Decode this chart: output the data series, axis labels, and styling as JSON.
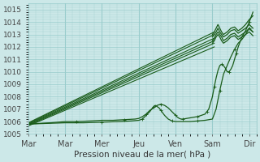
{
  "xlabel": "Pression niveau de la mer( hPa )",
  "ylim": [
    1005,
    1015.5
  ],
  "xlim": [
    0,
    6.2
  ],
  "bg_color": "#cce8e8",
  "grid_color": "#99cccc",
  "line_color": "#1a5c1a",
  "tick_labels": [
    "Mar",
    "Mar",
    "Mer",
    "Jeu",
    "Ven",
    "Sam",
    "Dir"
  ],
  "tick_positions": [
    0.0,
    1.0,
    2.0,
    3.0,
    4.0,
    5.0,
    6.0
  ],
  "yticks": [
    1005,
    1006,
    1007,
    1008,
    1009,
    1010,
    1011,
    1012,
    1013,
    1014,
    1015
  ],
  "straight_lines": [
    {
      "x0": 0.0,
      "y0": 1005.9,
      "x1": 5.05,
      "y1": 1013.2
    },
    {
      "x0": 0.0,
      "y0": 1005.85,
      "x1": 5.05,
      "y1": 1013.0
    },
    {
      "x0": 0.0,
      "y0": 1005.8,
      "x1": 5.05,
      "y1": 1012.7
    },
    {
      "x0": 0.0,
      "y0": 1005.75,
      "x1": 5.05,
      "y1": 1012.5
    },
    {
      "x0": 0.0,
      "y0": 1005.7,
      "x1": 5.05,
      "y1": 1012.3
    },
    {
      "x0": 0.0,
      "y0": 1005.65,
      "x1": 5.05,
      "y1": 1012.0
    }
  ],
  "wiggly_series": [
    {
      "x": [
        0.0,
        0.3,
        0.6,
        1.0,
        1.3,
        1.7,
        2.0,
        2.3,
        2.6,
        2.9,
        3.0,
        3.1,
        3.2,
        3.3,
        3.4,
        3.5,
        3.6,
        3.7,
        3.8,
        3.9,
        4.0,
        4.05,
        4.1,
        4.15,
        4.2,
        4.3,
        4.4,
        4.5,
        4.6,
        4.7,
        4.75,
        4.8,
        4.85,
        4.9,
        4.95,
        5.0,
        5.05,
        5.1,
        5.15,
        5.2,
        5.25,
        5.3,
        5.35,
        5.4,
        5.45,
        5.5,
        5.55,
        5.6,
        5.65,
        5.7,
        5.8,
        5.9,
        6.0,
        6.1
      ],
      "y": [
        1005.8,
        1005.85,
        1005.9,
        1006.0,
        1006.0,
        1006.05,
        1006.1,
        1006.1,
        1006.15,
        1006.2,
        1006.25,
        1006.4,
        1006.6,
        1006.9,
        1007.1,
        1007.3,
        1007.4,
        1007.3,
        1007.1,
        1006.8,
        1006.5,
        1006.35,
        1006.25,
        1006.2,
        1006.2,
        1006.25,
        1006.3,
        1006.35,
        1006.4,
        1006.5,
        1006.55,
        1006.6,
        1006.8,
        1007.0,
        1007.5,
        1008.0,
        1008.8,
        1009.5,
        1010.1,
        1010.5,
        1010.6,
        1010.5,
        1010.3,
        1010.0,
        1010.0,
        1010.2,
        1010.5,
        1011.0,
        1011.5,
        1012.0,
        1012.8,
        1013.3,
        1014.0,
        1014.8
      ],
      "marker": true,
      "lw": 0.9
    },
    {
      "x": [
        0.0,
        0.5,
        1.0,
        1.5,
        2.0,
        2.5,
        2.8,
        3.0,
        3.1,
        3.2,
        3.3,
        3.35,
        3.4,
        3.45,
        3.5,
        3.55,
        3.6,
        3.65,
        3.7,
        3.8,
        3.9,
        4.0,
        4.2,
        4.4,
        4.6,
        4.8,
        5.0,
        5.1,
        5.2,
        5.3,
        5.4,
        5.5,
        5.6,
        5.7,
        5.8,
        5.9,
        6.0,
        6.1
      ],
      "y": [
        1005.8,
        1005.85,
        1005.9,
        1005.9,
        1005.95,
        1006.0,
        1006.05,
        1006.1,
        1006.2,
        1006.5,
        1006.8,
        1007.0,
        1007.2,
        1007.3,
        1007.2,
        1007.1,
        1006.9,
        1006.7,
        1006.5,
        1006.2,
        1006.05,
        1006.0,
        1006.0,
        1006.0,
        1006.05,
        1006.1,
        1006.2,
        1007.0,
        1008.5,
        1009.8,
        1010.5,
        1011.2,
        1011.8,
        1012.3,
        1012.6,
        1013.0,
        1013.5,
        1013.2
      ],
      "marker": true,
      "lw": 0.9
    }
  ],
  "end_wiggles": [
    {
      "x": [
        5.0,
        5.05,
        5.1,
        5.15,
        5.2,
        5.25,
        5.3,
        5.4,
        5.5,
        5.6,
        5.7,
        5.8,
        5.9,
        6.0,
        6.1
      ],
      "y": [
        1013.0,
        1013.2,
        1013.5,
        1013.8,
        1013.5,
        1013.2,
        1013.0,
        1013.2,
        1013.5,
        1013.6,
        1013.3,
        1013.5,
        1013.8,
        1014.2,
        1014.5
      ],
      "lw": 0.9
    },
    {
      "x": [
        5.0,
        5.05,
        5.1,
        5.15,
        5.2,
        5.25,
        5.3,
        5.4,
        5.5,
        5.6,
        5.7,
        5.8,
        5.9,
        6.0,
        6.1
      ],
      "y": [
        1012.8,
        1013.0,
        1013.2,
        1013.5,
        1013.2,
        1013.0,
        1012.8,
        1013.0,
        1013.3,
        1013.4,
        1013.1,
        1013.3,
        1013.5,
        1013.8,
        1013.5
      ],
      "lw": 0.9
    },
    {
      "x": [
        5.0,
        5.05,
        5.1,
        5.15,
        5.2,
        5.25,
        5.3,
        5.4,
        5.5,
        5.6,
        5.7,
        5.8,
        5.9,
        6.0,
        6.1
      ],
      "y": [
        1012.5,
        1012.7,
        1013.0,
        1013.2,
        1013.0,
        1012.8,
        1012.5,
        1012.7,
        1013.0,
        1013.1,
        1012.8,
        1013.0,
        1013.2,
        1013.5,
        1013.2
      ],
      "lw": 0.9
    },
    {
      "x": [
        5.0,
        5.05,
        5.1,
        5.15,
        5.2,
        5.25,
        5.3,
        5.4,
        5.5,
        5.6,
        5.7,
        5.8,
        5.9,
        6.0,
        6.1
      ],
      "y": [
        1012.3,
        1012.5,
        1012.8,
        1013.0,
        1012.8,
        1012.5,
        1012.3,
        1012.5,
        1012.8,
        1012.9,
        1012.6,
        1012.8,
        1013.0,
        1013.2,
        1012.9
      ],
      "lw": 0.9
    }
  ]
}
